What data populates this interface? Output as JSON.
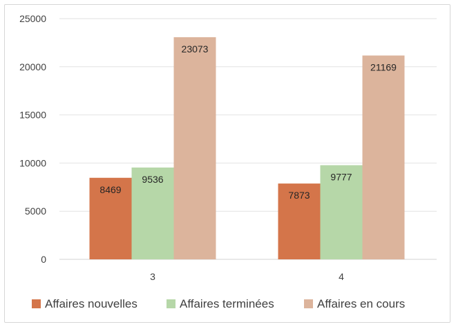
{
  "chart_data": {
    "type": "bar",
    "categories": [
      "3",
      "4"
    ],
    "series": [
      {
        "name": "Affaires nouvelles",
        "values": [
          8469,
          7873
        ],
        "color": "#d4754a"
      },
      {
        "name": "Affaires terminées",
        "values": [
          9536,
          9777
        ],
        "color": "#b6d7a8"
      },
      {
        "name": "Affaires en cours",
        "values": [
          23073,
          21169
        ],
        "color": "#dcb49c"
      }
    ],
    "ylim": [
      0,
      25000
    ],
    "yticks": [
      0,
      5000,
      10000,
      15000,
      20000,
      25000
    ],
    "grid": true,
    "legend_position": "bottom"
  }
}
